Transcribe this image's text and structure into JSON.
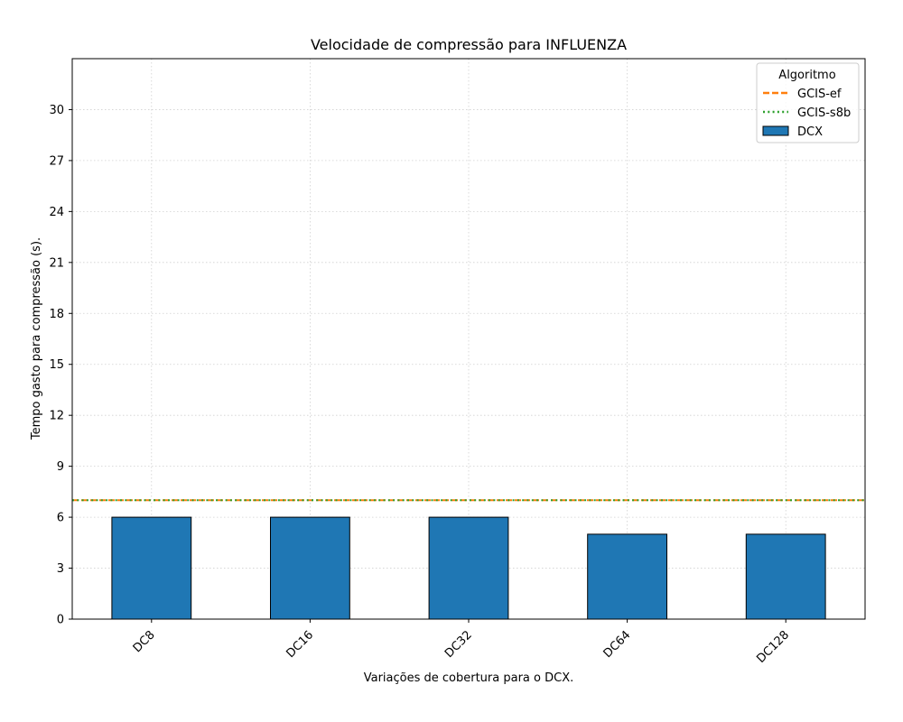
{
  "chart_data": {
    "type": "bar",
    "title": "Velocidade de compressão para  INFLUENZA",
    "xlabel": "Variações de cobertura para o DCX.",
    "ylabel": "Tempo gasto para compressão (s).",
    "categories": [
      "DC8",
      "DC16",
      "DC32",
      "DC64",
      "DC128"
    ],
    "series": [
      {
        "name": "DCX",
        "values": [
          6,
          6,
          6,
          5,
          5
        ],
        "color": "#1f77b4"
      }
    ],
    "reference_lines": [
      {
        "name": "GCIS-ef",
        "value": 7,
        "color": "#ff7f0e",
        "style": "dashed"
      },
      {
        "name": "GCIS-s8b",
        "value": 7,
        "color": "#2ca02c",
        "style": "dotted"
      }
    ],
    "ylim": [
      0,
      33
    ],
    "yticks": [
      0,
      3,
      6,
      9,
      12,
      15,
      18,
      21,
      24,
      27,
      30
    ],
    "grid": true,
    "legend": {
      "title": "Algoritmo",
      "placement": "top-right"
    }
  }
}
